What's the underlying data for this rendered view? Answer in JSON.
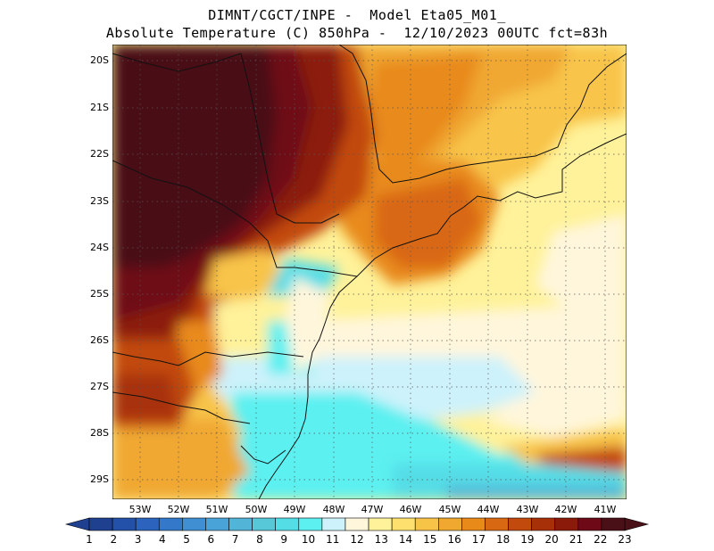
{
  "header": {
    "line1": "DIMNT/CGCT/INPE -  Model Eta05_M01_",
    "line2": "Absolute Temperature (C) 850hPa -  12/10/2023 00UTC fct=83h"
  },
  "map": {
    "latitude_labels": [
      "20S",
      "21S",
      "22S",
      "23S",
      "24S",
      "25S",
      "26S",
      "27S",
      "28S",
      "29S"
    ],
    "longitude_labels": [
      "53W",
      "52W",
      "51W",
      "50W",
      "49W",
      "48W",
      "47W",
      "46W",
      "45W",
      "44W",
      "43W",
      "42W",
      "41W"
    ],
    "lat_range": [
      -29.4,
      -19.8
    ],
    "lon_range": [
      -53.9,
      -40.5
    ]
  },
  "colorbar": {
    "labels": [
      "1",
      "2",
      "3",
      "4",
      "5",
      "6",
      "7",
      "8",
      "9",
      "10",
      "11",
      "12",
      "13",
      "14",
      "15",
      "16",
      "17",
      "18",
      "19",
      "20",
      "21",
      "22",
      "23"
    ],
    "colors": [
      "#1f3f8f",
      "#2350a8",
      "#2b63bd",
      "#3479c9",
      "#3f8fd2",
      "#4aa3d8",
      "#52b5d8",
      "#56c8d8",
      "#55dde6",
      "#5cf0f0",
      "#cdf2fb",
      "#fff6dc",
      "#fff29a",
      "#fde06e",
      "#f8c448",
      "#f0a830",
      "#e88a1a",
      "#d96812",
      "#c24a0c",
      "#a83008",
      "#8c1a0a",
      "#6e0a18",
      "#4a1018"
    ]
  }
}
